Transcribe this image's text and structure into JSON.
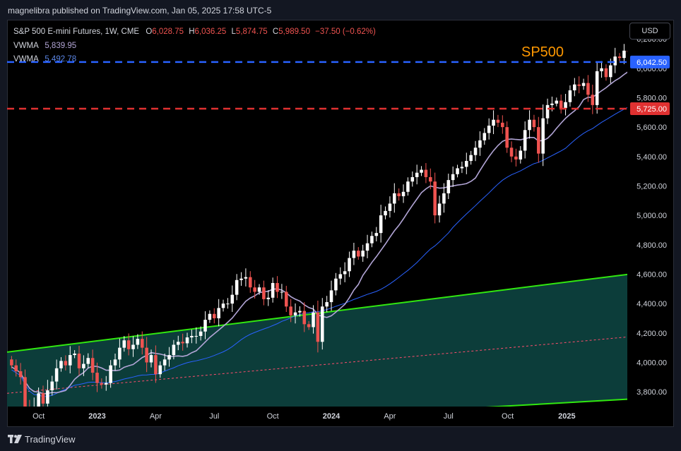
{
  "publish_info": "magnelibra published on TradingView.com, Jan 05, 2025 17:58 UTC-5",
  "legend": {
    "symbol": "S&P 500 E-mini Futures, 1W, CME",
    "o_label": "O",
    "o_value": "6,028.75",
    "h_label": "H",
    "h_value": "6,036.25",
    "l_label": "L",
    "l_value": "5,874.75",
    "c_label": "C",
    "c_value": "5,989.50",
    "change": "−37.50 (−0.62%)",
    "vwma1_label": "VWMA",
    "vwma1_value": "5,839.95",
    "vwma2_label": "VWMA",
    "vwma2_value": "5,492.78"
  },
  "currency_button": "USD",
  "brand": "TradingView",
  "colors": {
    "up": "#ffffff",
    "down": "#ef5350",
    "vwma_fast": "#b2a5d6",
    "vwma_slow": "#2962ff",
    "resistance": "#2962ff",
    "support": "#e03131",
    "channel": "#31e80f",
    "channel_fill": "#0c3d3a",
    "annotation": "#ff9800"
  },
  "chart_data": {
    "type": "candlestick",
    "title": "S&P 500 E-mini Futures, 1W, CME",
    "annotation": "SP500",
    "ylim": [
      3700,
      6330
    ],
    "y_ticks": [
      "3,800.00",
      "4,000.00",
      "4,200.00",
      "4,400.00",
      "4,600.00",
      "4,800.00",
      "5,000.00",
      "5,200.00",
      "5,400.00",
      "5,600.00",
      "5,800.00",
      "6,000.00",
      "6,200.00"
    ],
    "y_tick_values": [
      3800,
      4000,
      4200,
      4400,
      4600,
      4800,
      5000,
      5200,
      5400,
      5600,
      5800,
      6000,
      6200
    ],
    "x_ticks": [
      "Oct",
      "2023",
      "Apr",
      "Jul",
      "Oct",
      "2024",
      "Apr",
      "Jul",
      "Oct",
      "2025"
    ],
    "x_tick_dates": [
      "2022-10-03",
      "2023-01-02",
      "2023-04-03",
      "2023-07-03",
      "2023-10-02",
      "2024-01-01",
      "2024-04-01",
      "2024-07-01",
      "2024-10-01",
      "2025-01-01"
    ],
    "x_range": [
      "2022-08-15",
      "2025-04-05"
    ],
    "start_week": "2022-08-22",
    "closes": [
      3980,
      3940,
      3900,
      3700,
      3650,
      3700,
      3790,
      3720,
      3810,
      3870,
      3960,
      4010,
      3980,
      4050,
      4060,
      3960,
      3990,
      4030,
      3930,
      3860,
      3850,
      3860,
      3980,
      4020,
      4100,
      4150,
      4090,
      4120,
      4160,
      4100,
      4000,
      4050,
      3920,
      3980,
      4020,
      4050,
      4120,
      4140,
      4130,
      4170,
      4180,
      4180,
      4210,
      4290,
      4330,
      4300,
      4370,
      4400,
      4400,
      4460,
      4560,
      4570,
      4580,
      4510,
      4480,
      4510,
      4430,
      4440,
      4540,
      4480,
      4480,
      4380,
      4320,
      4340,
      4350,
      4260,
      4240,
      4340,
      4140,
      4380,
      4410,
      4490,
      4570,
      4600,
      4620,
      4710,
      4760,
      4720,
      4760,
      4810,
      4860,
      4880,
      5000,
      5030,
      5080,
      5150,
      5130,
      5160,
      5230,
      5260,
      5290,
      5310,
      5260,
      5230,
      5000,
      5080,
      5150,
      5240,
      5280,
      5320,
      5330,
      5370,
      5410,
      5460,
      5510,
      5560,
      5610,
      5650,
      5630,
      5600,
      5460,
      5400,
      5380,
      5440,
      5580,
      5650,
      5600,
      5420,
      5660,
      5750,
      5760,
      5780,
      5730,
      5770,
      5850,
      5890,
      5880,
      5900,
      5820,
      5750,
      5980,
      6000,
      5940,
      6020,
      6080,
      6070,
      6120,
      6110,
      6030,
      5980,
      5990
    ],
    "series": [
      {
        "name": "VWMA",
        "value_label": "5,839.95",
        "last": 5839.95
      },
      {
        "name": "VWMA",
        "value_label": "5,492.78",
        "last": 5492.78
      }
    ],
    "horizontal_lines": [
      {
        "value": 6042.5,
        "label": "6,042.50",
        "style": "dashed",
        "color": "#2962ff"
      },
      {
        "value": 5725.0,
        "label": "5,725.00",
        "style": "dashed",
        "color": "#e03131"
      }
    ],
    "channel": {
      "upper": [
        [
          "2022-08-15",
          4070
        ],
        [
          "2025-04-05",
          4598
        ]
      ],
      "lower": [
        [
          "2022-08-15",
          3510
        ],
        [
          "2025-04-05",
          3750
        ]
      ],
      "mid": [
        [
          "2022-08-15",
          3790
        ],
        [
          "2025-04-05",
          4173
        ]
      ]
    }
  }
}
